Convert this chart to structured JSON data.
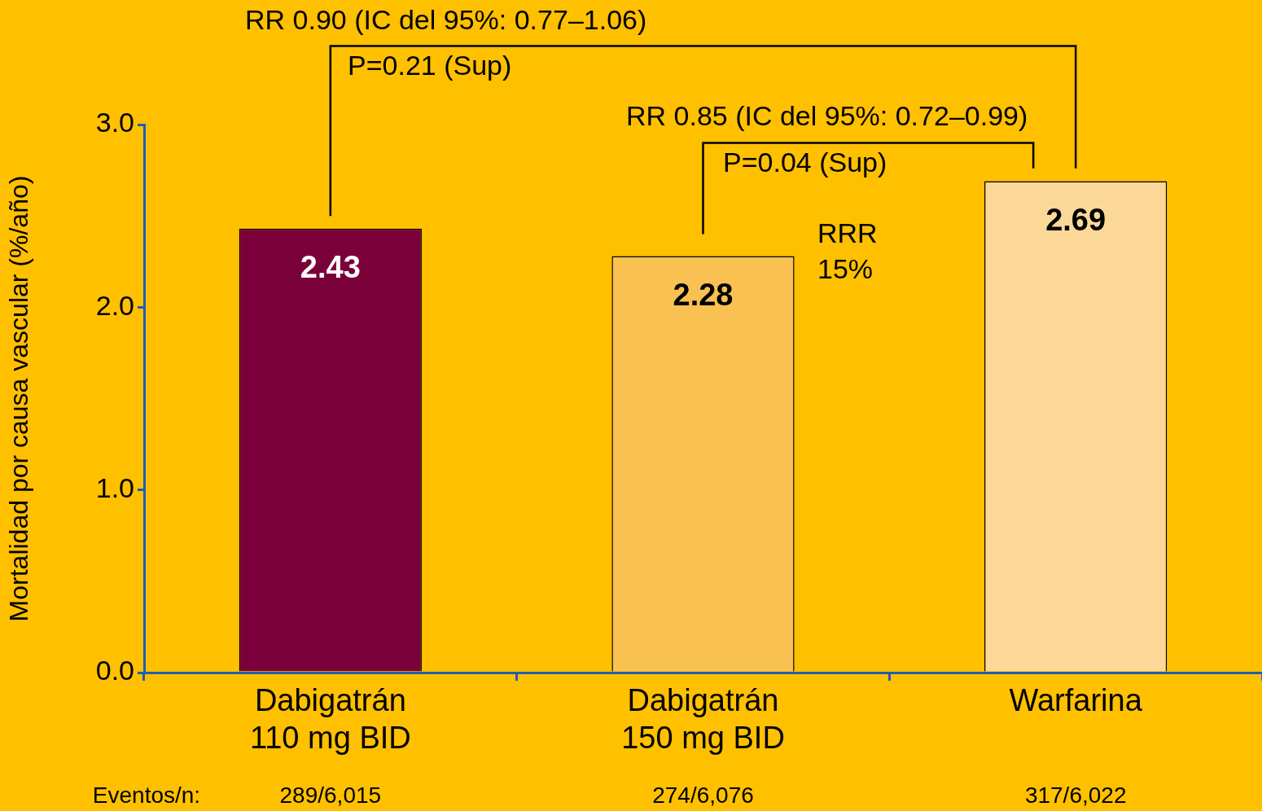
{
  "chart_data": {
    "type": "bar",
    "ylabel": "Mortalidad por causa vascular (%/año)",
    "categories": [
      "Dabigatrán\n110 mg BID",
      "Dabigatrán\n150 mg BID",
      "Warfarina"
    ],
    "values": [
      2.43,
      2.28,
      2.69
    ],
    "colors": [
      "#7a0039",
      "#f9c152",
      "#fcd898"
    ],
    "ylim": [
      0,
      3
    ],
    "yticks": [
      {
        "value": 0,
        "label": "0.0"
      },
      {
        "value": 1,
        "label": "1.0"
      },
      {
        "value": 2,
        "label": "2.0"
      },
      {
        "value": 3,
        "label": "3.0"
      }
    ],
    "grid": false,
    "legend": false,
    "data_labels": true,
    "annotations": [
      "RR 0.90 (IC del 95%: 0.77–1.06)",
      "P=0.21 (Sup)",
      "RR 0.85 (IC del 95%: 0.72–0.99)",
      "P=0.04 (Sup)",
      "RRR\n15%",
      "Eventos/n:",
      "289/6,015",
      "274/6,076",
      "317/6,022"
    ]
  }
}
